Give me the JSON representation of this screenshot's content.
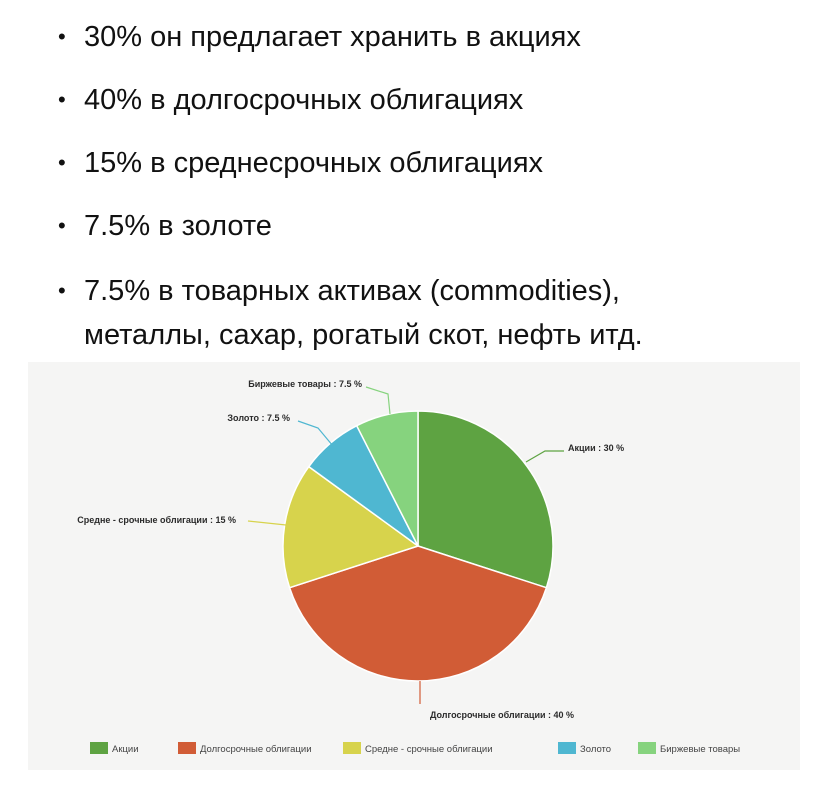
{
  "bullets": [
    {
      "text": "30% он предлагает хранить в акциях"
    },
    {
      "text": "40% в долгосрочных облигациях"
    },
    {
      "text": "15% в среднесрочных облигациях"
    },
    {
      "text": "7.5% в золоте"
    },
    {
      "text": "7.5% в товарных активах (commodities),",
      "text2": "металлы, сахар, рогатый скот, нефть итд."
    }
  ],
  "bullet_char": "•",
  "chart_data": {
    "type": "pie",
    "slices": [
      {
        "name": "Акции",
        "label": "Акции : 30 %",
        "value": 30,
        "color": "#5ea342"
      },
      {
        "name": "Долгосрочные облигации",
        "label": "Долгосрочные облигации : 40 %",
        "value": 40,
        "color": "#d15c36"
      },
      {
        "name": "Средне - срочные облигации",
        "label": "Средне - срочные облигации : 15 %",
        "value": 15,
        "color": "#d7d34c"
      },
      {
        "name": "Золото",
        "label": "Золото : 7.5 %",
        "value": 7.5,
        "color": "#4fb7d1"
      },
      {
        "name": "Биржевые товары",
        "label": "Биржевые товары : 7.5 %",
        "value": 7.5,
        "color": "#86d37e"
      }
    ],
    "legend_placement": "bottom"
  }
}
